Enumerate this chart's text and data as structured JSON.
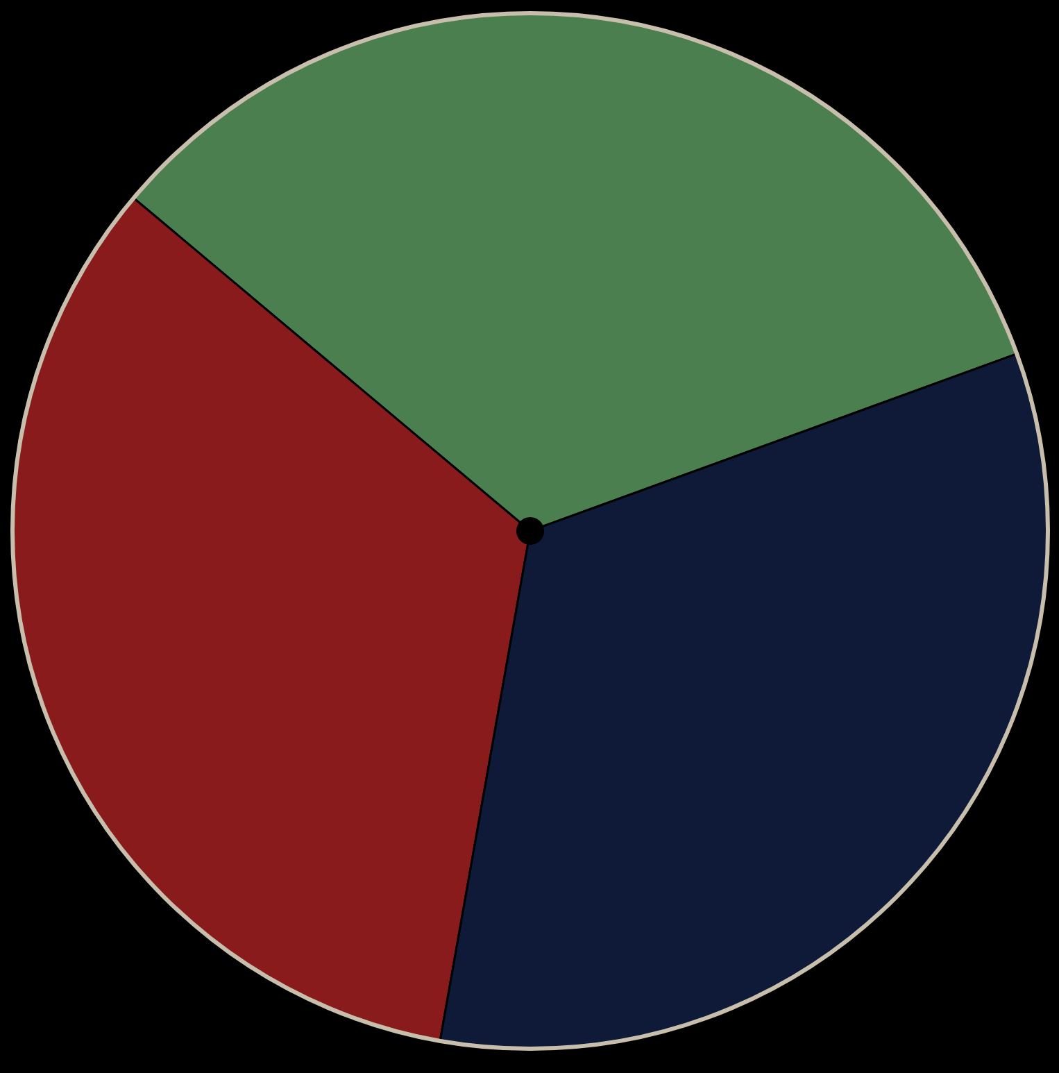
{
  "chart_data": {
    "type": "pie",
    "categories": [
      null,
      null,
      null
    ],
    "values": [
      33.33,
      33.33,
      33.34
    ],
    "colors": [
      "#4b7f50",
      "#8a1b1d",
      "#0f1938"
    ]
  }
}
